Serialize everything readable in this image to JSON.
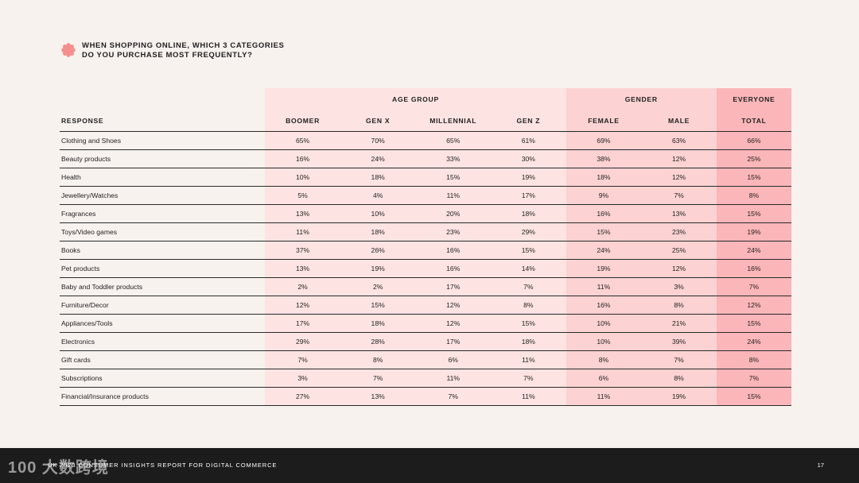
{
  "title": {
    "line1": "WHEN SHOPPING ONLINE, WHICH 3 CATEGORIES",
    "line2": "DO YOU PURCHASE MOST FREQUENTLY?"
  },
  "table": {
    "group_headers": {
      "age": "AGE GROUP",
      "gender": "GENDER",
      "everyone": "EVERYONE"
    },
    "column_headers": [
      "RESPONSE",
      "BOOMER",
      "GEN X",
      "MILLENNIAL",
      "GEN Z",
      "FEMALE",
      "MALE",
      "TOTAL"
    ],
    "rows": [
      {
        "label": "Clothing and Shoes",
        "values": [
          "65%",
          "70%",
          "65%",
          "61%",
          "69%",
          "63%",
          "66%"
        ]
      },
      {
        "label": "Beauty products",
        "values": [
          "16%",
          "24%",
          "33%",
          "30%",
          "38%",
          "12%",
          "25%"
        ]
      },
      {
        "label": "Health",
        "values": [
          "10%",
          "18%",
          "15%",
          "19%",
          "18%",
          "12%",
          "15%"
        ]
      },
      {
        "label": "Jewellery/Watches",
        "values": [
          "5%",
          "4%",
          "11%",
          "17%",
          "9%",
          "7%",
          "8%"
        ]
      },
      {
        "label": "Fragrances",
        "values": [
          "13%",
          "10%",
          "20%",
          "18%",
          "16%",
          "13%",
          "15%"
        ]
      },
      {
        "label": "Toys/Video games",
        "values": [
          "11%",
          "18%",
          "23%",
          "29%",
          "15%",
          "23%",
          "19%"
        ]
      },
      {
        "label": "Books",
        "values": [
          "37%",
          "26%",
          "16%",
          "15%",
          "24%",
          "25%",
          "24%"
        ]
      },
      {
        "label": "Pet products",
        "values": [
          "13%",
          "19%",
          "16%",
          "14%",
          "19%",
          "12%",
          "16%"
        ]
      },
      {
        "label": "Baby and Toddler products",
        "values": [
          "2%",
          "2%",
          "17%",
          "7%",
          "11%",
          "3%",
          "7%"
        ]
      },
      {
        "label": "Furniture/Decor",
        "values": [
          "12%",
          "15%",
          "12%",
          "8%",
          "16%",
          "8%",
          "12%"
        ]
      },
      {
        "label": "Appliances/Tools",
        "values": [
          "17%",
          "18%",
          "12%",
          "15%",
          "10%",
          "21%",
          "15%"
        ]
      },
      {
        "label": "Electronics",
        "values": [
          "29%",
          "28%",
          "17%",
          "18%",
          "10%",
          "39%",
          "24%"
        ]
      },
      {
        "label": "Gift cards",
        "values": [
          "7%",
          "8%",
          "6%",
          "11%",
          "8%",
          "7%",
          "8%"
        ]
      },
      {
        "label": "Subscriptions",
        "values": [
          "3%",
          "7%",
          "11%",
          "7%",
          "6%",
          "8%",
          "7%"
        ]
      },
      {
        "label": "Financial/Insurance products",
        "values": [
          "27%",
          "13%",
          "7%",
          "11%",
          "11%",
          "19%",
          "15%"
        ]
      }
    ]
  },
  "footer": {
    "report_title": "UK 2023 CONSUMER INSIGHTS REPORT FOR DIGITAL COMMERCE",
    "page_number": "17",
    "watermark": "100 大数跨境"
  },
  "colors": {
    "background": "#f8f2ee",
    "age_band": "#fde4e2",
    "gender_band": "#fcd2d2",
    "everyone_band": "#fbb6b9",
    "accent_flower": "#f48f8f",
    "footer_bg": "#1c1c1c"
  }
}
